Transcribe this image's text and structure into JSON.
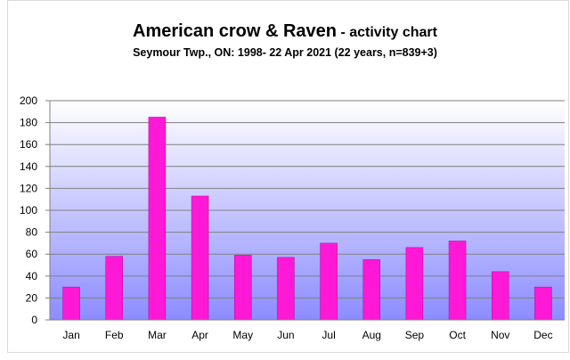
{
  "chart_data": {
    "type": "bar",
    "title": "American crow & Raven",
    "title_suffix": "activity chart",
    "subtitle": "Seymour Twp., ON: 1998- 22 Apr 2021 (22 years, n=839+3)",
    "categories": [
      "Jan",
      "Feb",
      "Mar",
      "Apr",
      "May",
      "Jun",
      "Jul",
      "Aug",
      "Sep",
      "Oct",
      "Nov",
      "Dec"
    ],
    "values": [
      30,
      58,
      185,
      113,
      59,
      57,
      70,
      55,
      66,
      72,
      44,
      30
    ],
    "ylim": [
      0,
      200
    ],
    "yticks": [
      0,
      20,
      40,
      60,
      80,
      100,
      120,
      140,
      160,
      180,
      200
    ],
    "xlabel": "",
    "ylabel": "",
    "grid": true,
    "legend": "none",
    "colors": {
      "bar": "#ff19d6",
      "bar_edge": "#b000a0",
      "plot_top": "#ffffff",
      "plot_bottom": "#8c8cff",
      "grid": "#808080"
    }
  }
}
